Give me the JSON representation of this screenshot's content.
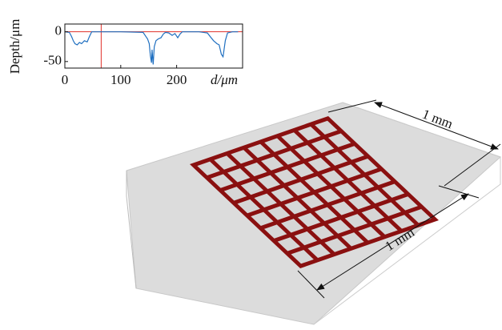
{
  "chart_data": {
    "type": "line",
    "ylabel": "Depth/μm",
    "xlabel": "d/μm",
    "xlim": [
      0,
      318
    ],
    "ylim": [
      -61,
      13
    ],
    "xticks": [
      0,
      100,
      200
    ],
    "yticks": [
      0,
      -50
    ],
    "ref_color": "#e0302a",
    "hline": 0,
    "vline": 65,
    "series": [
      {
        "color": "#1f6fc0",
        "x": [
          0,
          8,
          12,
          15,
          18,
          22,
          26,
          30,
          35,
          40,
          44,
          48,
          60,
          100,
          140,
          145,
          148,
          151,
          153,
          155,
          156,
          158,
          160,
          163,
          167,
          172,
          176,
          180,
          186,
          192,
          197,
          202,
          206,
          210,
          240,
          255,
          260,
          266,
          272,
          276,
          280,
          283,
          287,
          291,
          300,
          310
        ],
        "values": [
          0,
          -1,
          -8,
          -15,
          -20,
          -22,
          -18,
          -20,
          -15,
          -17,
          -8,
          0,
          0,
          0,
          -1,
          -8,
          -12,
          -20,
          -40,
          -52,
          -30,
          -55,
          -25,
          -15,
          -12,
          -10,
          -4,
          -1,
          -2,
          -6,
          -3,
          -10,
          -4,
          0,
          0,
          -2,
          -8,
          -15,
          -20,
          -22,
          -38,
          -42,
          -15,
          -2,
          0,
          0
        ]
      }
    ]
  },
  "annotations": [
    "1 mm",
    "1 mm"
  ]
}
